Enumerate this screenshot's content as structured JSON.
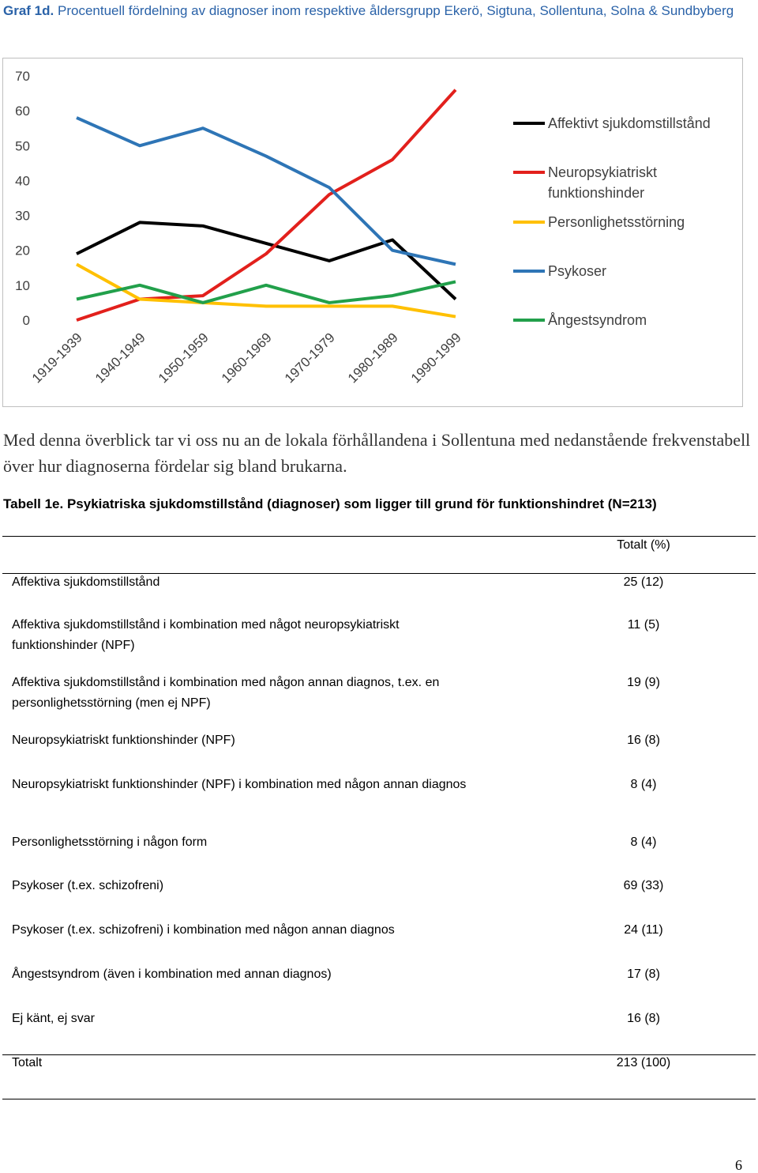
{
  "chart_data": {
    "type": "line",
    "label": "Graf 1d.",
    "title": "Procentuell fördelning av diagnoser inom respektive åldersgrupp Ekerö, Sigtuna, Sollentuna, Solna & Sundbyberg",
    "categories": [
      "1919-1939",
      "1940-1949",
      "1950-1959",
      "1960-1969",
      "1970-1979",
      "1980-1989",
      "1990-1999"
    ],
    "series": [
      {
        "name": "Affektivt sjukdomstillstånd",
        "color": "#000000",
        "values": [
          19,
          28,
          27,
          22,
          17,
          23,
          6
        ]
      },
      {
        "name": "Neuropsykiatriskt funktionshinder",
        "color": "#e2201c",
        "values": [
          0,
          6,
          7,
          19,
          36,
          46,
          66
        ]
      },
      {
        "name": "Personlighetsstörning",
        "color": "#ffc000",
        "values": [
          16,
          6,
          5,
          4,
          4,
          4,
          1
        ]
      },
      {
        "name": "Psykoser",
        "color": "#2e75b6",
        "values": [
          58,
          50,
          55,
          47,
          38,
          20,
          16
        ]
      },
      {
        "name": "Ångestsyndrom",
        "color": "#22a04b",
        "values": [
          6,
          10,
          5,
          10,
          5,
          7,
          11
        ]
      }
    ],
    "ylim": [
      0,
      70
    ],
    "yticks": [
      0,
      10,
      20,
      30,
      40,
      50,
      60,
      70
    ],
    "grid": false
  },
  "text": {
    "paragraph": "Med denna överblick tar vi oss nu an de lokala förhållandena i Sollentuna med nedanstående frekvenstabell över hur diagnoserna fördelar sig bland brukarna.",
    "caption": "Tabell 1e. Psykiatriska sjukdomstillstånd (diagnoser) som ligger till grund för funktionshindret (N=213)",
    "page_number": "6"
  },
  "table": {
    "header": "Totalt (%)",
    "rows": [
      [
        "Affektiva sjukdomstillstånd",
        "25 (12)"
      ],
      [
        "Affektiva sjukdomstillstånd i kombination med något neuropsykiatriskt funktionshinder (NPF)",
        "11 (5)"
      ],
      [
        "Affektiva sjukdomstillstånd i kombination med någon annan diagnos, t.ex. en personlighetsstörning (men ej NPF)",
        "19 (9)"
      ],
      [
        "Neuropsykiatriskt funktionshinder (NPF)",
        "16 (8)"
      ],
      [
        "Neuropsykiatriskt funktionshinder (NPF) i kombination med någon annan diagnos",
        "8 (4)"
      ],
      [
        "Personlighetsstörning i någon form",
        "8 (4)"
      ],
      [
        "Psykoser (t.ex. schizofreni)",
        "69 (33)"
      ],
      [
        "Psykoser (t.ex. schizofreni) i kombination med någon annan diagnos",
        "24 (11)"
      ],
      [
        "Ångestsyndrom (även i kombination med annan diagnos)",
        "17 (8)"
      ],
      [
        "Ej känt, ej svar",
        "16 (8)"
      ],
      [
        "Totalt",
        "213 (100)"
      ]
    ]
  }
}
